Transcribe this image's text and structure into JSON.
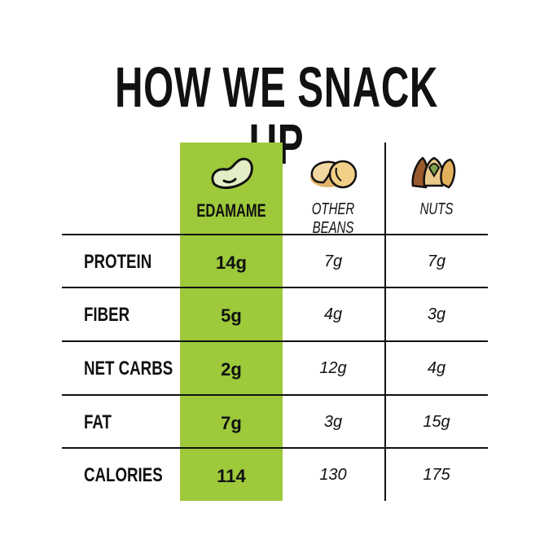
{
  "title": "HOW WE SNACK UP",
  "accent_color": "#9dc93b",
  "columns": [
    {
      "label": "EDAMAME",
      "icon": "edamame-bean-icon"
    },
    {
      "label": "OTHER BEANS",
      "icon": "beans-icon"
    },
    {
      "label": "NUTS",
      "icon": "nuts-icon"
    }
  ],
  "rows": [
    {
      "label": "PROTEIN",
      "values": [
        "14g",
        "7g",
        "7g"
      ]
    },
    {
      "label": "FIBER",
      "values": [
        "5g",
        "4g",
        "3g"
      ]
    },
    {
      "label": "NET CARBS",
      "values": [
        "2g",
        "12g",
        "4g"
      ]
    },
    {
      "label": "FAT",
      "values": [
        "7g",
        "3g",
        "15g"
      ]
    },
    {
      "label": "CALORIES",
      "values": [
        "114",
        "130",
        "175"
      ]
    }
  ]
}
